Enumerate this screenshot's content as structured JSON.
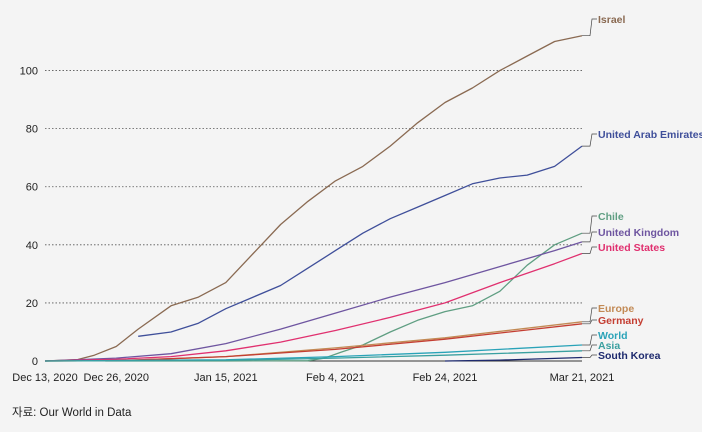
{
  "source_text": "자료: Our World in Data",
  "chart_data": {
    "type": "line",
    "x_ticks": [
      "Dec 13, 2020",
      "Dec 26, 2020",
      "Jan 15, 2021",
      "Feb 4, 2021",
      "Feb 24, 2021",
      "Mar 21, 2021"
    ],
    "x_tick_days": [
      0,
      13,
      33,
      53,
      73,
      98
    ],
    "x_range": [
      "Dec 13, 2020",
      "Mar 21, 2021"
    ],
    "ylim": [
      0,
      115
    ],
    "y_ticks": [
      0,
      20,
      40,
      60,
      80,
      100
    ],
    "grid": "horizontal dotted",
    "series": [
      {
        "name": "Israel",
        "color": "#8a6a52",
        "x": [
          "Dec 13, 2020",
          "Dec 19, 2020",
          "Dec 22, 2020",
          "Dec 26, 2020",
          "Dec 30, 2020",
          "Jan 5, 2021",
          "Jan 10, 2021",
          "Jan 15, 2021",
          "Jan 20, 2021",
          "Jan 25, 2021",
          "Jan 30, 2021",
          "Feb 4, 2021",
          "Feb 9, 2021",
          "Feb 14, 2021",
          "Feb 19, 2021",
          "Feb 24, 2021",
          "Mar 1, 2021",
          "Mar 6, 2021",
          "Mar 11, 2021",
          "Mar 16, 2021",
          "Mar 21, 2021"
        ],
        "y": [
          0,
          0.5,
          2,
          5,
          11,
          19,
          22,
          27,
          37,
          47,
          55,
          62,
          67,
          74,
          82,
          89,
          94,
          100,
          105,
          110,
          112
        ]
      },
      {
        "name": "United Arab Emirates",
        "color": "#3f4f9a",
        "x": [
          "Dec 30, 2020",
          "Jan 5, 2021",
          "Jan 10, 2021",
          "Jan 15, 2021",
          "Jan 20, 2021",
          "Jan 25, 2021",
          "Jan 30, 2021",
          "Feb 4, 2021",
          "Feb 9, 2021",
          "Feb 14, 2021",
          "Feb 19, 2021",
          "Feb 24, 2021",
          "Mar 1, 2021",
          "Mar 6, 2021",
          "Mar 11, 2021",
          "Mar 16, 2021",
          "Mar 21, 2021"
        ],
        "y": [
          8.5,
          10,
          13,
          18,
          22,
          26,
          32,
          38,
          44,
          49,
          53,
          57,
          61,
          63,
          64,
          67,
          74
        ]
      },
      {
        "name": "Chile",
        "color": "#5f9e82",
        "x": [
          "Dec 24, 2020",
          "Jan 15, 2021",
          "Jan 30, 2021",
          "Feb 2, 2021",
          "Feb 5, 2021",
          "Feb 9, 2021",
          "Feb 14, 2021",
          "Feb 19, 2021",
          "Feb 24, 2021",
          "Mar 1, 2021",
          "Mar 6, 2021",
          "Mar 11, 2021",
          "Mar 16, 2021",
          "Mar 21, 2021"
        ],
        "y": [
          0,
          0,
          0.1,
          1,
          3,
          5.5,
          10,
          14,
          17,
          19,
          24,
          33,
          40,
          44
        ]
      },
      {
        "name": "United Kingdom",
        "color": "#6e55a0",
        "x": [
          "Dec 13, 2020",
          "Dec 26, 2020",
          "Jan 5, 2021",
          "Jan 15, 2021",
          "Jan 25, 2021",
          "Feb 4, 2021",
          "Feb 14, 2021",
          "Feb 24, 2021",
          "Mar 6, 2021",
          "Mar 16, 2021",
          "Mar 21, 2021"
        ],
        "y": [
          0,
          1,
          2.5,
          6,
          11,
          16.5,
          22,
          27,
          32.5,
          38,
          41
        ]
      },
      {
        "name": "United States",
        "color": "#e0306f",
        "x": [
          "Dec 13, 2020",
          "Dec 26, 2020",
          "Jan 5, 2021",
          "Jan 15, 2021",
          "Jan 25, 2021",
          "Feb 4, 2021",
          "Feb 14, 2021",
          "Feb 24, 2021",
          "Mar 6, 2021",
          "Mar 16, 2021",
          "Mar 21, 2021"
        ],
        "y": [
          0,
          0.6,
          1.5,
          3.5,
          6.5,
          10.5,
          15,
          20,
          27,
          33.5,
          37
        ]
      },
      {
        "name": "Europe",
        "color": "#c28a55",
        "x": [
          "Dec 13, 2020",
          "Dec 26, 2020",
          "Jan 15, 2021",
          "Feb 4, 2021",
          "Feb 24, 2021",
          "Mar 21, 2021"
        ],
        "y": [
          0,
          0.1,
          1.5,
          4.5,
          8,
          13.5
        ]
      },
      {
        "name": "Germany",
        "color": "#c43e32",
        "x": [
          "Dec 13, 2020",
          "Dec 26, 2020",
          "Jan 15, 2021",
          "Feb 4, 2021",
          "Feb 24, 2021",
          "Mar 21, 2021"
        ],
        "y": [
          0,
          0.1,
          1.5,
          4,
          7.5,
          12.8
        ]
      },
      {
        "name": "World",
        "color": "#2aa3b8",
        "x": [
          "Dec 13, 2020",
          "Jan 15, 2021",
          "Feb 4, 2021",
          "Feb 24, 2021",
          "Mar 21, 2021"
        ],
        "y": [
          0,
          0.4,
          1.5,
          3,
          5.5
        ]
      },
      {
        "name": "Asia",
        "color": "#3aa0a0",
        "x": [
          "Dec 13, 2020",
          "Jan 15, 2021",
          "Feb 4, 2021",
          "Feb 24, 2021",
          "Mar 21, 2021"
        ],
        "y": [
          0,
          0.2,
          1,
          2,
          3.5
        ]
      },
      {
        "name": "South Korea",
        "color": "#1e2a6e",
        "x": [
          "Feb 24, 2021",
          "Mar 6, 2021",
          "Mar 21, 2021"
        ],
        "y": [
          0,
          0.3,
          1.2
        ]
      }
    ]
  }
}
